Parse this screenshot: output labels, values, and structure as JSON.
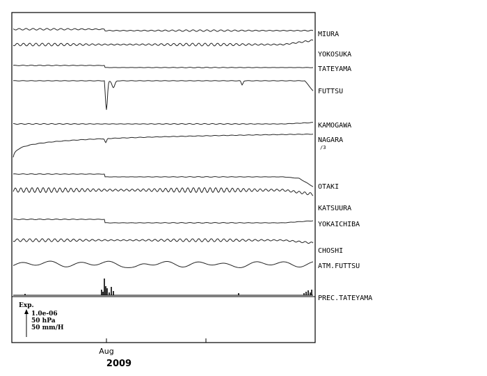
{
  "chart_data": {
    "type": "line",
    "title": "",
    "xlabel": "",
    "ylabel": "",
    "x_ticks": [
      "Aug"
    ],
    "x_year": "2009",
    "scale_box": {
      "label": "Exp.",
      "lines": [
        "1.0e-06",
        "50 hPa",
        "50 mm/H"
      ]
    },
    "series": [
      {
        "name": "MIURA",
        "shape": "wiggle",
        "base": 0,
        "amp": 1.2,
        "period": 10,
        "step": 2,
        "drift": 0
      },
      {
        "name": "YOKOSUKA",
        "shape": "wiggle",
        "base": 0,
        "amp": 2,
        "period": 9,
        "step": 0,
        "drift": -6
      },
      {
        "name": "TATEYAMA",
        "shape": "wiggle",
        "base": 0,
        "amp": 0.4,
        "period": 12,
        "step": 3,
        "drift": 0
      },
      {
        "name": "FUTTSU",
        "shape": "spike",
        "base": 0,
        "amp": 0.3,
        "period": 12,
        "step": 0,
        "drift": 0
      },
      {
        "name": "KAMOGAWA",
        "shape": "wiggle",
        "base": 0,
        "amp": 0.6,
        "period": 11,
        "step": 0,
        "drift": -2
      },
      {
        "name": "NAGARA",
        "note": "/3",
        "shape": "ramp",
        "base": 0,
        "amp": 0.3,
        "period": 12,
        "step": 0,
        "drift": -32
      },
      {
        "name": "OTAKI",
        "shape": "step_drop",
        "base": 0,
        "amp": 0.4,
        "period": 12,
        "step": 4,
        "drift": 4
      },
      {
        "name": "KATSUURA",
        "shape": "wiggle",
        "base": 0,
        "amp": 3.5,
        "period": 8,
        "step": 0,
        "drift": 6
      },
      {
        "name": "YOKAICHIBA",
        "shape": "wiggle",
        "base": 0,
        "amp": 0.5,
        "period": 12,
        "step": 5,
        "drift": -3
      },
      {
        "name": "CHOSHI",
        "shape": "wiggle",
        "base": 0,
        "amp": 2.2,
        "period": 9,
        "step": 0,
        "drift": 4
      },
      {
        "name": "ATM.FUTTSU",
        "shape": "pressure",
        "base": 0,
        "amp": 2,
        "period": 40,
        "step": 0,
        "drift": 0
      },
      {
        "name": "PREC.TATEYAMA",
        "shape": "precip",
        "base": 0,
        "amp": 0,
        "period": 0,
        "step": 0,
        "drift": 0
      }
    ]
  }
}
